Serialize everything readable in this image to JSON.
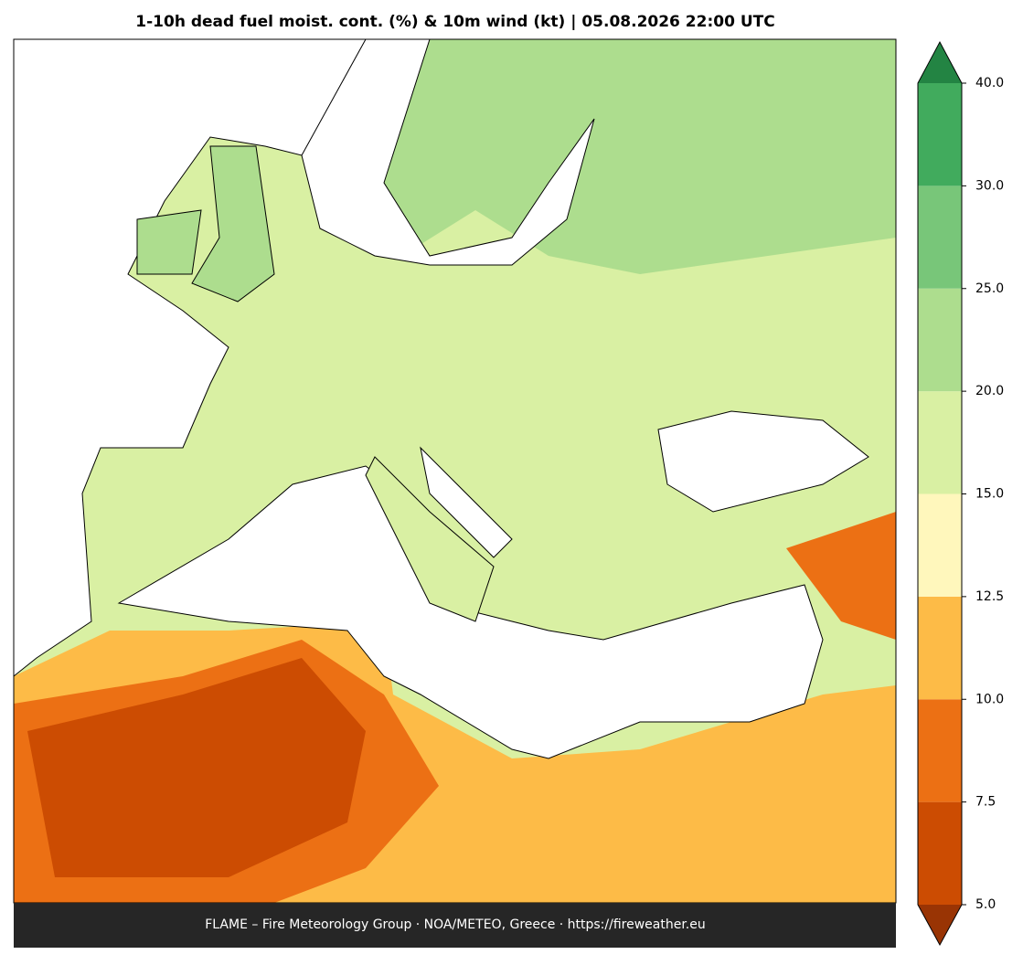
{
  "header": {
    "title": "1-10h dead fuel moist. cont. (%) & 10m wind (kt)  |  05.08.2026 22:00 UTC"
  },
  "footer": {
    "text": "FLAME – Fire Meteorology Group · NOA/METEO, Greece · https://fireweather.eu"
  },
  "colorbar": {
    "ticks": [
      {
        "value": 5,
        "label": "5.0"
      },
      {
        "value": 7.5,
        "label": "7.5"
      },
      {
        "value": 10,
        "label": "10.0"
      },
      {
        "value": 12.5,
        "label": "12.5"
      },
      {
        "value": 15,
        "label": "15.0"
      },
      {
        "value": 20,
        "label": "20.0"
      },
      {
        "value": 25,
        "label": "25.0"
      },
      {
        "value": 30,
        "label": "30.0"
      },
      {
        "value": 40,
        "label": "40.0"
      }
    ],
    "colors": [
      "#cc4c02",
      "#ec7014",
      "#fdbb47",
      "#fff7bc",
      "#d9f0a3",
      "#addd8e",
      "#78c679",
      "#41ab5d"
    ],
    "extend_low_color": "#993404",
    "extend_high_color": "#238443"
  }
}
